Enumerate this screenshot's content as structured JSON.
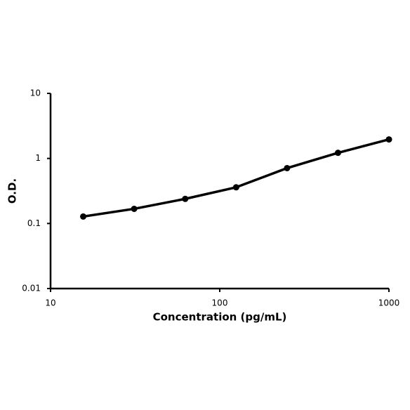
{
  "chart_data": {
    "type": "line",
    "x_label": "Concentration (pg/mL)",
    "y_label": "O.D.",
    "x": [
      15.6,
      31.2,
      62.5,
      125,
      250,
      500,
      1000
    ],
    "series": [
      {
        "color": "#000000",
        "values": [
          0.128,
          0.168,
          0.239,
          0.36,
          0.71,
          1.22,
          1.96
        ]
      }
    ],
    "xlim": [
      10,
      1000
    ],
    "xticks": [
      10,
      100,
      1000
    ],
    "ylim": [
      0.01,
      10
    ],
    "yticks": [
      0.01,
      0.1,
      1,
      10
    ],
    "log_x": true,
    "log_y": true
  }
}
